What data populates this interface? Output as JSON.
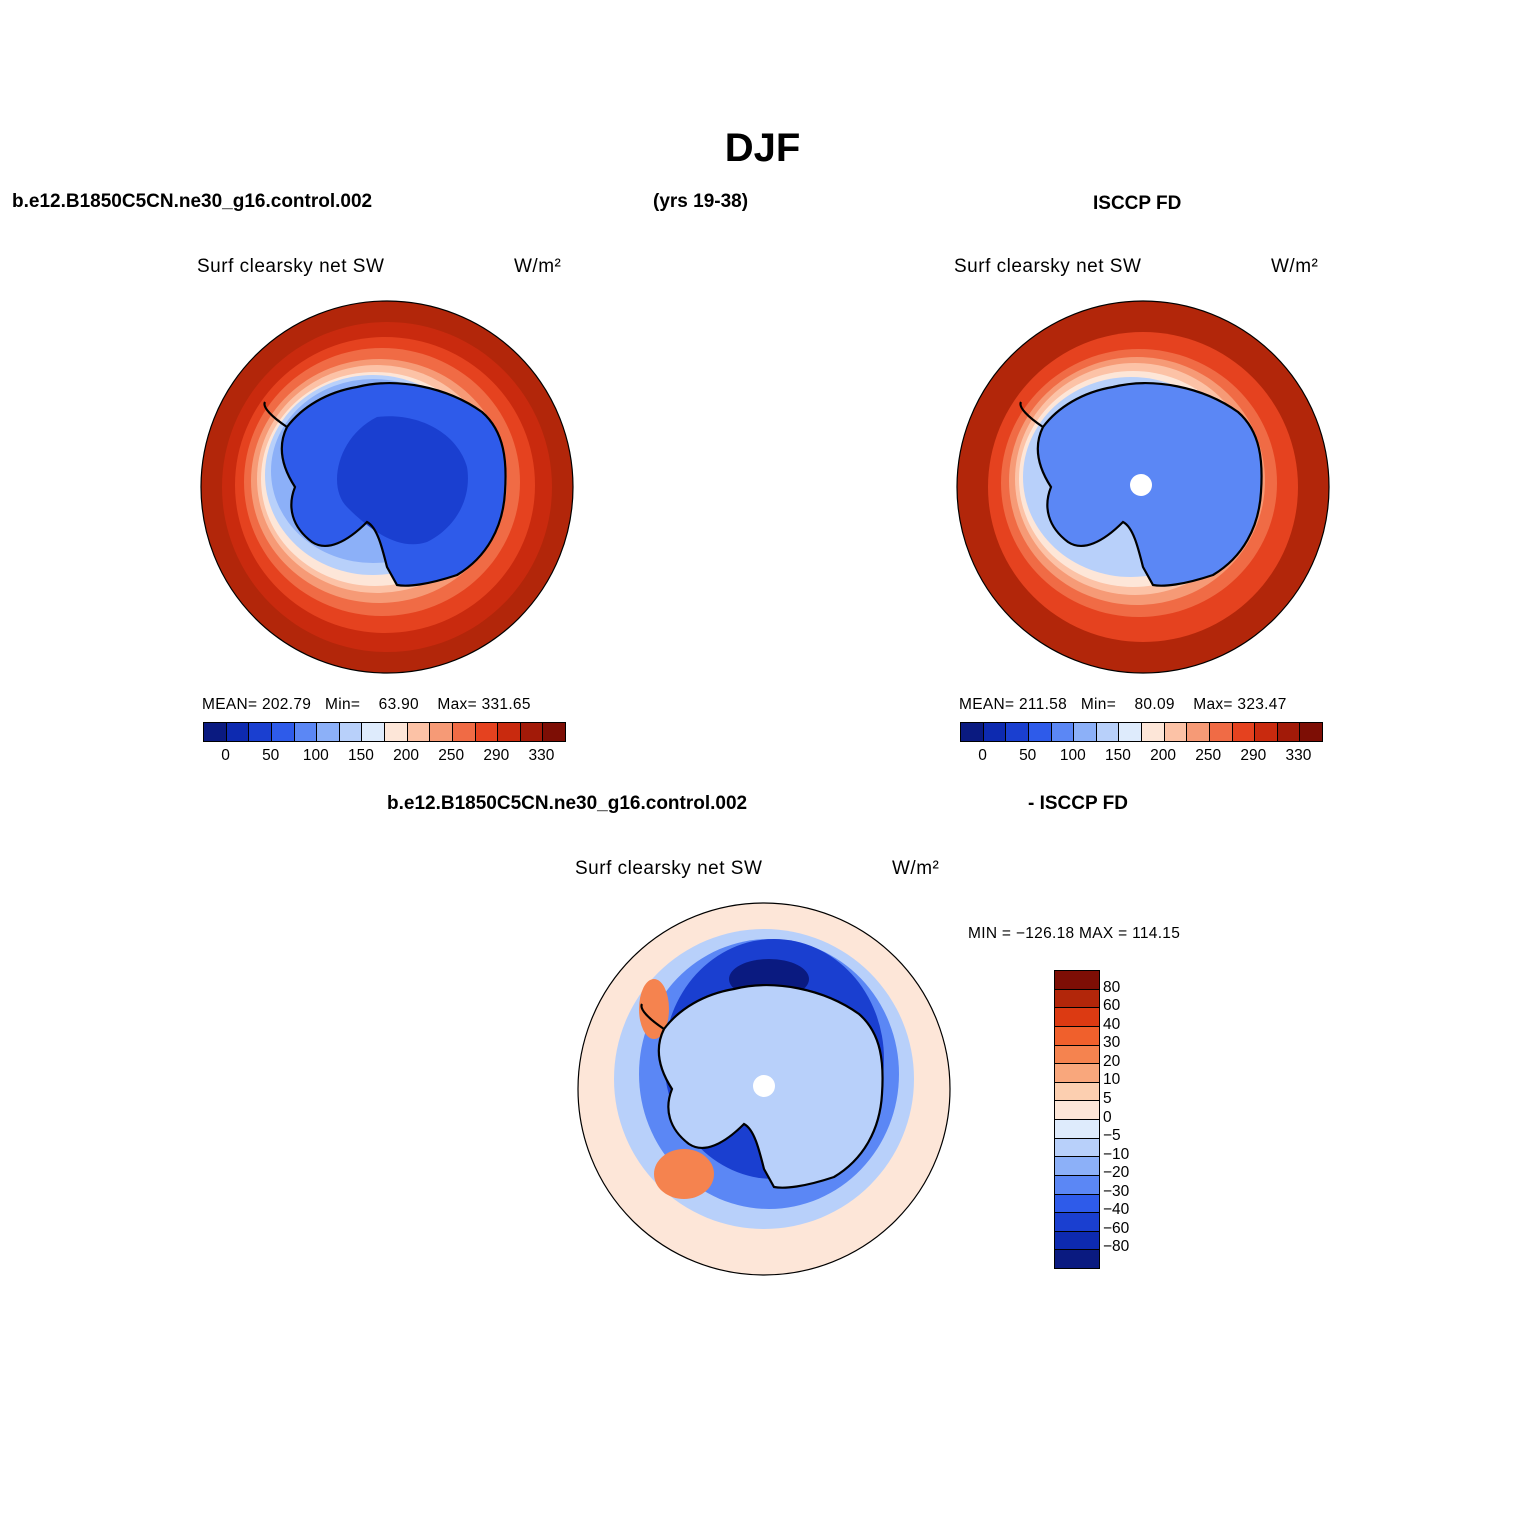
{
  "figure": {
    "season": "DJF",
    "case_name": "b.e12.B1850C5CN.ne30_g16.control.002",
    "years": "(yrs 19-38)",
    "obs_name": "ISCCP FD",
    "diff_case_name": "b.e12.B1850C5CN.ne30_g16.control.002",
    "diff_obs_name": "- ISCCP FD"
  },
  "panels": [
    {
      "title": "Surf clearsky net SW",
      "units": "W/m²",
      "stats": {
        "mean_label": "MEAN=",
        "mean": "202.79",
        "min_label": "Min=",
        "min": "63.90",
        "max_label": "Max=",
        "max": "331.65"
      }
    },
    {
      "title": "Surf clearsky net SW",
      "units": "W/m²",
      "stats": {
        "mean_label": "MEAN=",
        "mean": "211.58",
        "min_label": "Min=",
        "min": "80.09",
        "max_label": "Max=",
        "max": "323.47"
      }
    },
    {
      "title": "Surf clearsky net SW",
      "units": "W/m²",
      "stats_text": "MIN = −126.18  MAX = 114.15"
    }
  ],
  "colorbar_main": {
    "colors": [
      "#0a1a80",
      "#0d2ab0",
      "#1a3fd0",
      "#2e5bea",
      "#5b87f5",
      "#8cb0f8",
      "#b8d0fa",
      "#deebfc",
      "#fde6d8",
      "#fcc2a6",
      "#f69a76",
      "#f06b45",
      "#e5421f",
      "#c92a0e",
      "#a21a08",
      "#7d0e05"
    ],
    "tick_labels": [
      "0",
      "50",
      "100",
      "150",
      "200",
      "250",
      "290",
      "330"
    ]
  },
  "colorbar_diff": {
    "colors": [
      "#7d0e05",
      "#b2260a",
      "#dc3a12",
      "#f0602c",
      "#f5834f",
      "#f9a77c",
      "#fccfb0",
      "#fde6d8",
      "#deebfc",
      "#b8d0fa",
      "#8cb0f8",
      "#5b87f5",
      "#2e5bea",
      "#1a3fd0",
      "#0d2ab0",
      "#0a1a80"
    ],
    "tick_labels": [
      "80",
      "60",
      "40",
      "30",
      "20",
      "10",
      "5",
      "0",
      "−5",
      "−10",
      "−20",
      "−30",
      "−40",
      "−60",
      "−80"
    ]
  },
  "map_colors": {
    "ocean_high": "#b2260a",
    "ring_330": "#c92a0e",
    "ring_290": "#e5421f",
    "ring_250": "#f06b45",
    "ring_220": "#f69a76",
    "ring_200": "#fcc2a6",
    "ring_180": "#fde6d8",
    "ice_150": "#b8d0fa",
    "ice_120": "#8cb0f8",
    "land_100": "#5b87f5",
    "land_80": "#2e5bea",
    "land_70": "#1a3fd0",
    "diff_zero": "#fde6d8",
    "diff_neg5": "#b8d0fa",
    "diff_neg20": "#5b87f5",
    "diff_neg40": "#1a3fd0",
    "diff_neg80": "#0a1a80",
    "diff_pos": "#f5834f"
  }
}
